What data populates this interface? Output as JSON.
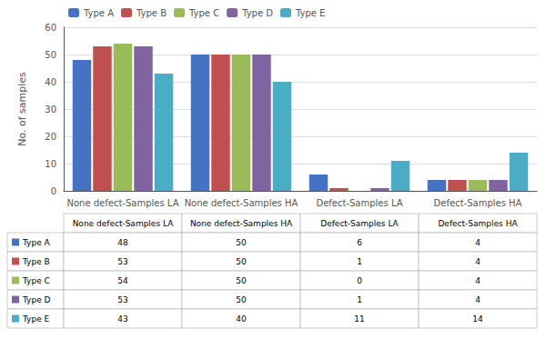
{
  "chart_data": {
    "type": "bar",
    "ylabel": "No. of samples",
    "categories": [
      "None defect-Samples LA",
      "None defect-Samples HA",
      "Defect-Samples LA",
      "Defect-Samples HA"
    ],
    "series": [
      {
        "name": "Type A",
        "color": "#4472C4",
        "values": [
          48,
          50,
          6,
          4
        ]
      },
      {
        "name": "Type B",
        "color": "#C0504D",
        "values": [
          53,
          50,
          1,
          4
        ]
      },
      {
        "name": "Type C",
        "color": "#9BBB59",
        "values": [
          54,
          50,
          0,
          4
        ]
      },
      {
        "name": "Type D",
        "color": "#8064A2",
        "values": [
          53,
          50,
          1,
          4
        ]
      },
      {
        "name": "Type E",
        "color": "#4BACC6",
        "values": [
          43,
          40,
          11,
          14
        ]
      }
    ],
    "ylim": [
      0,
      60
    ],
    "yticks": [
      0,
      10,
      20,
      30,
      40,
      50,
      60
    ],
    "grid": true,
    "legend": "upper left"
  }
}
